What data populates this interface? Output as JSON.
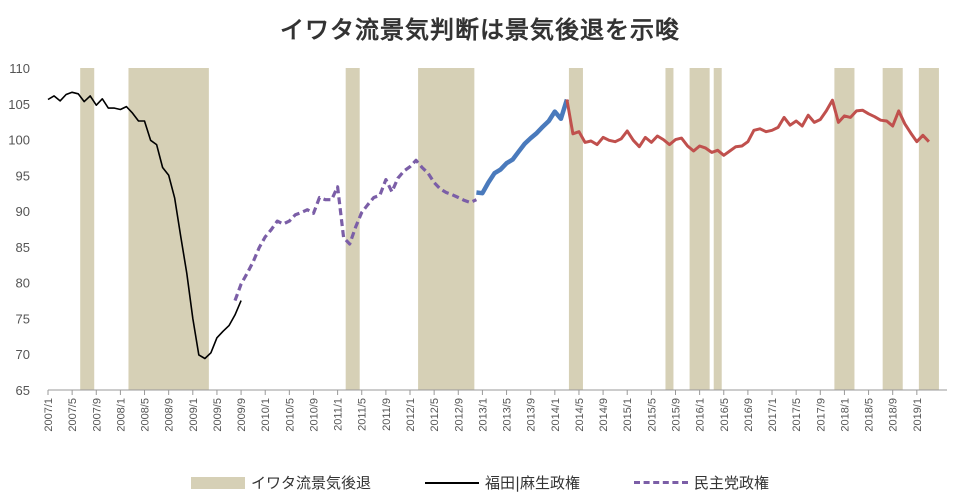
{
  "chart_data": {
    "type": "line",
    "title": "イワタ流景気判断は景気後退を示唆",
    "ylim": [
      65,
      110
    ],
    "yticks": [
      65,
      70,
      75,
      80,
      85,
      90,
      95,
      100,
      105,
      110
    ],
    "xtick_labels": [
      "2007/1",
      "2007/5",
      "2007/9",
      "2008/1",
      "2008/5",
      "2008/9",
      "2009/1",
      "2009/5",
      "2009/9",
      "2010/1",
      "2010/5",
      "2010/9",
      "2011/1",
      "2011/5",
      "2011/9",
      "2012/1",
      "2012/5",
      "2012/9",
      "2013/1",
      "2013/5",
      "2013/9",
      "2014/1",
      "2014/5",
      "2014/9",
      "2015/1",
      "2015/5",
      "2015/9",
      "2016/1",
      "2016/5",
      "2016/9",
      "2017/1",
      "2017/5",
      "2017/9",
      "2018/1",
      "2018/5",
      "2018/9",
      "2019/1"
    ],
    "x_start": "2007/1",
    "x_end": "2019/6",
    "grid": false,
    "legend_position": "bottom",
    "recessions": [
      {
        "start": "2007/7",
        "end": "2007/8"
      },
      {
        "start": "2008/3",
        "end": "2009/3"
      },
      {
        "start": "2011/3",
        "end": "2011/4"
      },
      {
        "start": "2012/3",
        "end": "2012/11"
      },
      {
        "start": "2014/4",
        "end": "2014/5"
      },
      {
        "start": "2015/8",
        "end": "2015/8"
      },
      {
        "start": "2015/12",
        "end": "2016/2"
      },
      {
        "start": "2016/4",
        "end": "2016/4"
      },
      {
        "start": "2017/12",
        "end": "2018/2"
      },
      {
        "start": "2018/8",
        "end": "2018/10"
      },
      {
        "start": "2019/2",
        "end": "2019/4"
      }
    ],
    "series": [
      {
        "name": "福田|麻生政権",
        "color": "#000000",
        "style": "solid",
        "start": "2007/1",
        "values": [
          105.6,
          106.1,
          105.4,
          106.3,
          106.6,
          106.4,
          105.3,
          106.1,
          104.8,
          105.7,
          104.4,
          104.4,
          104.2,
          104.6,
          103.7,
          102.6,
          102.6,
          99.9,
          99.3,
          96.1,
          95.0,
          91.8,
          86.5,
          81.3,
          75.0,
          69.9,
          69.4,
          70.2,
          72.3,
          73.2,
          74.0,
          75.5,
          77.5
        ]
      },
      {
        "name": "民主党政権",
        "color": "#7b5ea7",
        "style": "dashed",
        "start": "2009/8",
        "values": [
          77.5,
          79.8,
          81.3,
          82.9,
          84.9,
          86.4,
          87.4,
          88.6,
          88.2,
          88.6,
          89.5,
          89.8,
          90.2,
          89.7,
          91.9,
          91.6,
          91.6,
          93.4,
          86.3,
          85.4,
          87.8,
          89.8,
          90.9,
          91.9,
          92.2,
          94.4,
          92.7,
          94.6,
          95.6,
          96.2,
          97.1,
          96.1,
          95.3,
          94.0,
          93.1,
          92.6,
          92.3,
          91.9,
          91.5,
          91.2,
          91.6
        ]
      },
      {
        "name": "",
        "color": "#4a7abc",
        "style": "solid",
        "start": "2012/12",
        "values": [
          92.6,
          92.5,
          94.0,
          95.3,
          95.8,
          96.7,
          97.2,
          98.3,
          99.4,
          100.2,
          100.9,
          101.8,
          102.6,
          103.9,
          102.9,
          105.6
        ]
      },
      {
        "name": "",
        "color": "#c0504d",
        "style": "solid",
        "start": "2014/3",
        "values": [
          105.6,
          100.8,
          101.1,
          99.6,
          99.8,
          99.3,
          100.3,
          99.9,
          99.7,
          100.1,
          101.2,
          99.9,
          99.0,
          100.3,
          99.6,
          100.5,
          100.0,
          99.3,
          100.0,
          100.2,
          99.1,
          98.4,
          99.1,
          98.8,
          98.2,
          98.5,
          97.8,
          98.4,
          99.0,
          99.1,
          99.7,
          101.3,
          101.5,
          101.1,
          101.3,
          101.7,
          103.1,
          102.0,
          102.6,
          101.9,
          103.4,
          102.4,
          102.8,
          104.0,
          105.5,
          102.4,
          103.3,
          103.1,
          104.0,
          104.1,
          103.6,
          103.2,
          102.7,
          102.6,
          101.9,
          104.0,
          102.2,
          100.9,
          99.7,
          100.6,
          99.7
        ]
      }
    ]
  },
  "legend": {
    "recession_label": "イワタ流景気後退",
    "fukuda_aso_label": "福田|麻生政権",
    "dpj_label": "民主党政権"
  }
}
